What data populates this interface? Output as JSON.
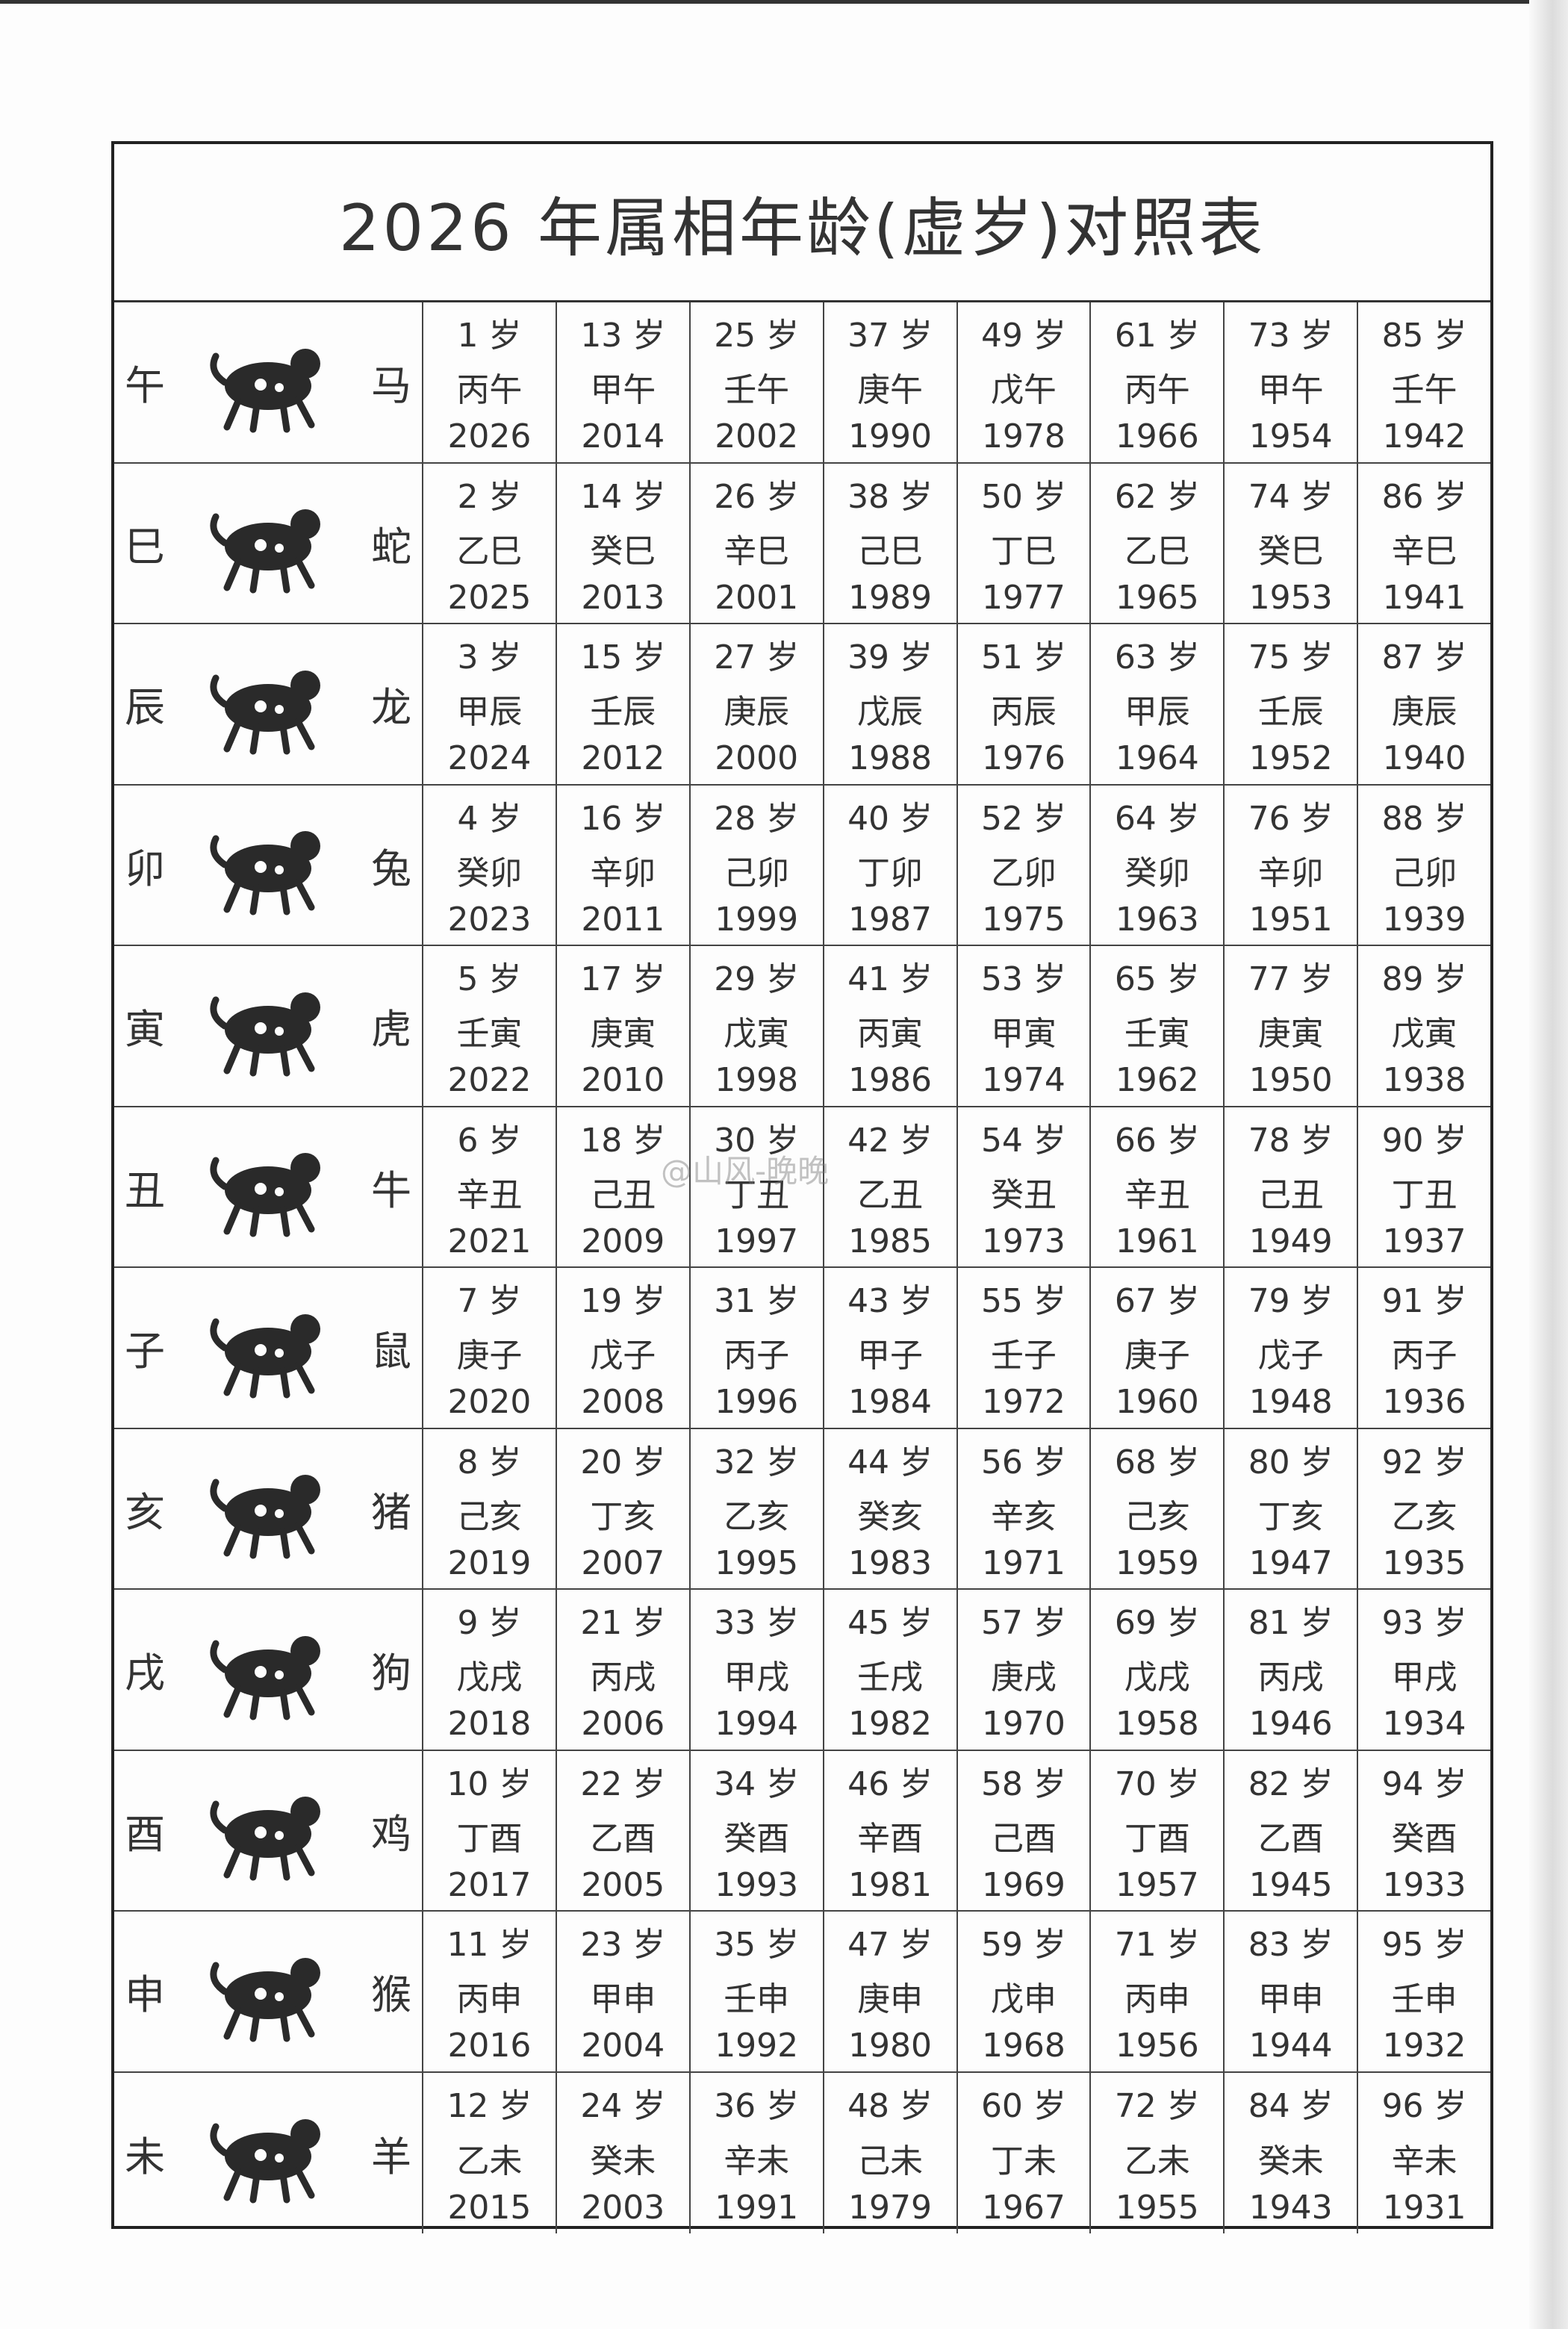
{
  "title": "2026 年属相年龄(虚岁)对照表",
  "watermark": "@山风-晚晚",
  "rows": [
    {
      "branch": "午",
      "animal": "马",
      "icon": "horse-icon",
      "cells": [
        [
          "1 岁",
          "丙午",
          "2026"
        ],
        [
          "13 岁",
          "甲午",
          "2014"
        ],
        [
          "25 岁",
          "壬午",
          "2002"
        ],
        [
          "37 岁",
          "庚午",
          "1990"
        ],
        [
          "49 岁",
          "戊午",
          "1978"
        ],
        [
          "61 岁",
          "丙午",
          "1966"
        ],
        [
          "73 岁",
          "甲午",
          "1954"
        ],
        [
          "85 岁",
          "壬午",
          "1942"
        ]
      ]
    },
    {
      "branch": "巳",
      "animal": "蛇",
      "icon": "snake-icon",
      "cells": [
        [
          "2 岁",
          "乙巳",
          "2025"
        ],
        [
          "14 岁",
          "癸巳",
          "2013"
        ],
        [
          "26 岁",
          "辛巳",
          "2001"
        ],
        [
          "38 岁",
          "己巳",
          "1989"
        ],
        [
          "50 岁",
          "丁巳",
          "1977"
        ],
        [
          "62 岁",
          "乙巳",
          "1965"
        ],
        [
          "74 岁",
          "癸巳",
          "1953"
        ],
        [
          "86 岁",
          "辛巳",
          "1941"
        ]
      ]
    },
    {
      "branch": "辰",
      "animal": "龙",
      "icon": "dragon-icon",
      "cells": [
        [
          "3 岁",
          "甲辰",
          "2024"
        ],
        [
          "15 岁",
          "壬辰",
          "2012"
        ],
        [
          "27 岁",
          "庚辰",
          "2000"
        ],
        [
          "39 岁",
          "戊辰",
          "1988"
        ],
        [
          "51 岁",
          "丙辰",
          "1976"
        ],
        [
          "63 岁",
          "甲辰",
          "1964"
        ],
        [
          "75 岁",
          "壬辰",
          "1952"
        ],
        [
          "87 岁",
          "庚辰",
          "1940"
        ]
      ]
    },
    {
      "branch": "卯",
      "animal": "兔",
      "icon": "rabbit-icon",
      "cells": [
        [
          "4 岁",
          "癸卯",
          "2023"
        ],
        [
          "16 岁",
          "辛卯",
          "2011"
        ],
        [
          "28 岁",
          "己卯",
          "1999"
        ],
        [
          "40 岁",
          "丁卯",
          "1987"
        ],
        [
          "52 岁",
          "乙卯",
          "1975"
        ],
        [
          "64 岁",
          "癸卯",
          "1963"
        ],
        [
          "76 岁",
          "辛卯",
          "1951"
        ],
        [
          "88 岁",
          "己卯",
          "1939"
        ]
      ]
    },
    {
      "branch": "寅",
      "animal": "虎",
      "icon": "tiger-icon",
      "cells": [
        [
          "5 岁",
          "壬寅",
          "2022"
        ],
        [
          "17 岁",
          "庚寅",
          "2010"
        ],
        [
          "29 岁",
          "戊寅",
          "1998"
        ],
        [
          "41 岁",
          "丙寅",
          "1986"
        ],
        [
          "53 岁",
          "甲寅",
          "1974"
        ],
        [
          "65 岁",
          "壬寅",
          "1962"
        ],
        [
          "77 岁",
          "庚寅",
          "1950"
        ],
        [
          "89 岁",
          "戊寅",
          "1938"
        ]
      ]
    },
    {
      "branch": "丑",
      "animal": "牛",
      "icon": "ox-icon",
      "cells": [
        [
          "6 岁",
          "辛丑",
          "2021"
        ],
        [
          "18 岁",
          "己丑",
          "2009"
        ],
        [
          "30 岁",
          "丁丑",
          "1997"
        ],
        [
          "42 岁",
          "乙丑",
          "1985"
        ],
        [
          "54 岁",
          "癸丑",
          "1973"
        ],
        [
          "66 岁",
          "辛丑",
          "1961"
        ],
        [
          "78 岁",
          "己丑",
          "1949"
        ],
        [
          "90 岁",
          "丁丑",
          "1937"
        ]
      ]
    },
    {
      "branch": "子",
      "animal": "鼠",
      "icon": "rat-icon",
      "cells": [
        [
          "7 岁",
          "庚子",
          "2020"
        ],
        [
          "19 岁",
          "戊子",
          "2008"
        ],
        [
          "31 岁",
          "丙子",
          "1996"
        ],
        [
          "43 岁",
          "甲子",
          "1984"
        ],
        [
          "55 岁",
          "壬子",
          "1972"
        ],
        [
          "67 岁",
          "庚子",
          "1960"
        ],
        [
          "79 岁",
          "戊子",
          "1948"
        ],
        [
          "91 岁",
          "丙子",
          "1936"
        ]
      ]
    },
    {
      "branch": "亥",
      "animal": "猪",
      "icon": "pig-icon",
      "cells": [
        [
          "8 岁",
          "己亥",
          "2019"
        ],
        [
          "20 岁",
          "丁亥",
          "2007"
        ],
        [
          "32 岁",
          "乙亥",
          "1995"
        ],
        [
          "44 岁",
          "癸亥",
          "1983"
        ],
        [
          "56 岁",
          "辛亥",
          "1971"
        ],
        [
          "68 岁",
          "己亥",
          "1959"
        ],
        [
          "80 岁",
          "丁亥",
          "1947"
        ],
        [
          "92 岁",
          "乙亥",
          "1935"
        ]
      ]
    },
    {
      "branch": "戌",
      "animal": "狗",
      "icon": "dog-icon",
      "cells": [
        [
          "9 岁",
          "戊戌",
          "2018"
        ],
        [
          "21 岁",
          "丙戌",
          "2006"
        ],
        [
          "33 岁",
          "甲戌",
          "1994"
        ],
        [
          "45 岁",
          "壬戌",
          "1982"
        ],
        [
          "57 岁",
          "庚戌",
          "1970"
        ],
        [
          "69 岁",
          "戊戌",
          "1958"
        ],
        [
          "81 岁",
          "丙戌",
          "1946"
        ],
        [
          "93 岁",
          "甲戌",
          "1934"
        ]
      ]
    },
    {
      "branch": "酉",
      "animal": "鸡",
      "icon": "rooster-icon",
      "cells": [
        [
          "10 岁",
          "丁酉",
          "2017"
        ],
        [
          "22 岁",
          "乙酉",
          "2005"
        ],
        [
          "34 岁",
          "癸酉",
          "1993"
        ],
        [
          "46 岁",
          "辛酉",
          "1981"
        ],
        [
          "58 岁",
          "己酉",
          "1969"
        ],
        [
          "70 岁",
          "丁酉",
          "1957"
        ],
        [
          "82 岁",
          "乙酉",
          "1945"
        ],
        [
          "94 岁",
          "癸酉",
          "1933"
        ]
      ]
    },
    {
      "branch": "申",
      "animal": "猴",
      "icon": "monkey-icon",
      "cells": [
        [
          "11 岁",
          "丙申",
          "2016"
        ],
        [
          "23 岁",
          "甲申",
          "2004"
        ],
        [
          "35 岁",
          "壬申",
          "1992"
        ],
        [
          "47 岁",
          "庚申",
          "1980"
        ],
        [
          "59 岁",
          "戊申",
          "1968"
        ],
        [
          "71 岁",
          "丙申",
          "1956"
        ],
        [
          "83 岁",
          "甲申",
          "1944"
        ],
        [
          "95 岁",
          "壬申",
          "1932"
        ]
      ]
    },
    {
      "branch": "未",
      "animal": "羊",
      "icon": "goat-icon",
      "cells": [
        [
          "12 岁",
          "乙未",
          "2015"
        ],
        [
          "24 岁",
          "癸未",
          "2003"
        ],
        [
          "36 岁",
          "辛未",
          "1991"
        ],
        [
          "48 岁",
          "己未",
          "1979"
        ],
        [
          "60 岁",
          "丁未",
          "1967"
        ],
        [
          "72 岁",
          "乙未",
          "1955"
        ],
        [
          "84 岁",
          "癸未",
          "1943"
        ],
        [
          "96 岁",
          "辛未",
          "1931"
        ]
      ]
    }
  ]
}
